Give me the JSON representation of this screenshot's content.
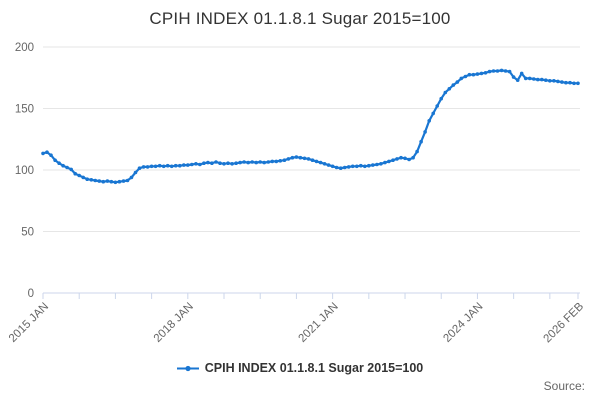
{
  "title": "CPIH INDEX 01.1.8.1 Sugar 2015=100",
  "legend": {
    "label": "CPIH INDEX 01.1.8.1 Sugar 2015=100"
  },
  "source_label": "Source:",
  "colors": {
    "series": "#1976d2",
    "grid": "#e6e6e6",
    "axis": "#ccd6eb",
    "label_text": "#666666",
    "title_text": "#333333"
  },
  "chart_data": {
    "type": "line",
    "title": "CPIH INDEX 01.1.8.1 Sugar 2015=100",
    "xlabel": "",
    "ylabel": "",
    "x_start": "2015 JAN",
    "x_end": "2026 FEB",
    "x_frequency": "monthly",
    "ylim": [
      0,
      200
    ],
    "y_ticks": [
      0,
      50,
      100,
      150,
      200
    ],
    "x_labeled_ticks": [
      {
        "m": 0,
        "label": "2015 JAN"
      },
      {
        "m": 36,
        "label": "2018 JAN"
      },
      {
        "m": 72,
        "label": "2021 JAN"
      },
      {
        "m": 108,
        "label": "2024 JAN"
      },
      {
        "m": 133,
        "label": "2026 FEB"
      }
    ],
    "x_minor_tick_every_months": 9,
    "grid": "horizontal",
    "legend_position": "bottom",
    "series": [
      {
        "name": "CPIH INDEX 01.1.8.1 Sugar 2015=100",
        "color": "#1976d2",
        "values": [
          113.5,
          114.5,
          112,
          108,
          105.5,
          103.5,
          102,
          100.5,
          97,
          95.5,
          94,
          92.5,
          92,
          91.5,
          91,
          90.5,
          91,
          90.5,
          90,
          90.5,
          91,
          91.5,
          94,
          98,
          101.5,
          102.5,
          102.5,
          103,
          103,
          103.5,
          103,
          103.5,
          103,
          103.5,
          103.5,
          104,
          104,
          104.5,
          105,
          104.5,
          105.5,
          106,
          105.5,
          106.5,
          105.5,
          105,
          105.5,
          105,
          105.5,
          106,
          106.5,
          106,
          106.5,
          106,
          106.5,
          106,
          106.5,
          107,
          107,
          107.5,
          108,
          109,
          110,
          110.5,
          110,
          109.5,
          109,
          108,
          107,
          106,
          105,
          104,
          103,
          102,
          101.5,
          102,
          102.5,
          103,
          103,
          103.5,
          103,
          103.5,
          104,
          104.5,
          105,
          106,
          107,
          108,
          109,
          110,
          109.5,
          108.5,
          110,
          115,
          123,
          131,
          140,
          146,
          152,
          158,
          163,
          166,
          169,
          171.5,
          174.5,
          176,
          177.5,
          177.5,
          178,
          178.5,
          179,
          180,
          180.5,
          180.5,
          181,
          180.5,
          180,
          175.5,
          173,
          178.5,
          174.5,
          174.5,
          174,
          173.5,
          173.5,
          173,
          172.5,
          172.5,
          172,
          171.5,
          171,
          171,
          170.5,
          170.5
        ]
      }
    ]
  }
}
